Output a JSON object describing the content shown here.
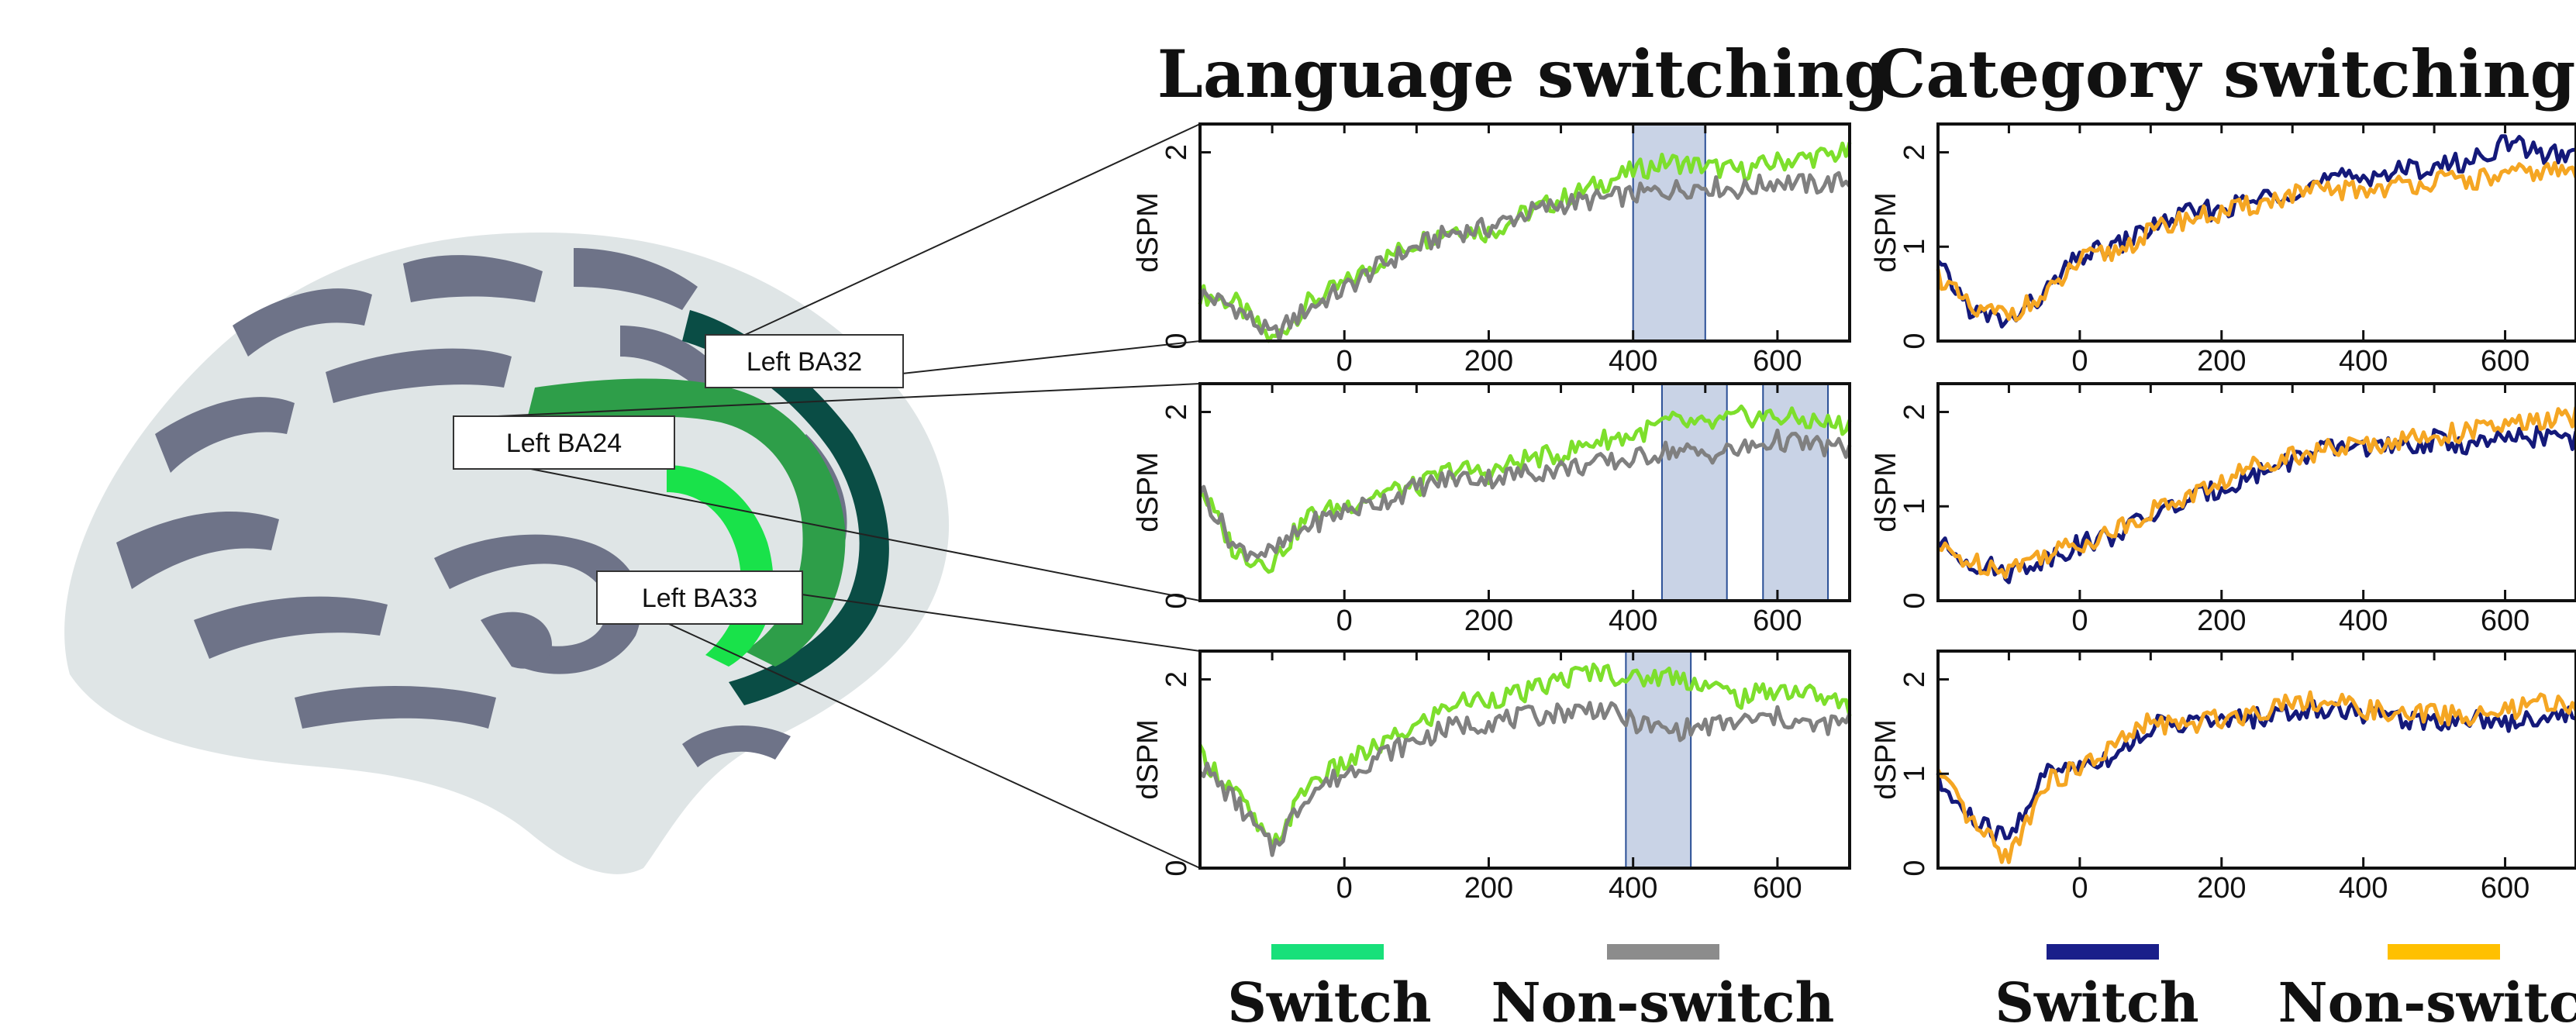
{
  "colors": {
    "lang_switch": "#7ddf2c",
    "lang_nonswitch": "#808080",
    "cat_switch": "#14197a",
    "cat_nonswitch": "#f5a623",
    "legend_lang_switch": "#18e07a",
    "legend_lang_nonswitch": "#8c8c8c",
    "legend_cat_switch": "#1a1f8a",
    "legend_cat_nonswitch": "#ffc000",
    "highlight_fill": "#c9d3e6",
    "highlight_stroke": "#2a4f96",
    "brain_surface": "#dfe5e6",
    "brain_sulci": "#6e7388",
    "ba32_color": "#0a4d45",
    "ba24_color": "#2e9e49",
    "ba33_color": "#19e24a"
  },
  "brain": {
    "labels": [
      "Left BA32",
      "Left BA24",
      "Left BA33"
    ]
  },
  "chart_data": [
    {
      "type": "line",
      "title": "Language switching",
      "panels": [
        {
          "region": "Left BA32",
          "ylabel": "dSPM",
          "xlim": [
            -200,
            700
          ],
          "ylim": [
            0,
            2.3
          ],
          "yticks": [
            0,
            2
          ],
          "xticks": [
            0,
            200,
            400,
            600
          ],
          "highlights": [
            [
              400,
              500
            ]
          ],
          "x": [
            -200,
            -150,
            -100,
            -50,
            0,
            50,
            100,
            150,
            200,
            250,
            300,
            350,
            400,
            450,
            500,
            550,
            600,
            650,
            700
          ],
          "series": [
            {
              "name": "Switch",
              "values": [
                0.5,
                0.4,
                0.0,
                0.4,
                0.6,
                0.85,
                1.05,
                1.2,
                1.15,
                1.35,
                1.5,
                1.65,
                1.8,
                1.9,
                1.85,
                1.8,
                1.9,
                1.95,
                2.0
              ]
            },
            {
              "name": "Non-switch",
              "values": [
                0.5,
                0.35,
                0.05,
                0.35,
                0.55,
                0.8,
                1.0,
                1.15,
                1.2,
                1.35,
                1.45,
                1.5,
                1.55,
                1.6,
                1.65,
                1.6,
                1.7,
                1.65,
                1.7
              ]
            }
          ]
        },
        {
          "region": "Left BA24",
          "ylabel": "dSPM",
          "xlim": [
            -200,
            700
          ],
          "ylim": [
            0,
            2.3
          ],
          "yticks": [
            0,
            2
          ],
          "xticks": [
            0,
            200,
            400,
            600
          ],
          "highlights": [
            [
              440,
              530
            ],
            [
              580,
              670
            ]
          ],
          "x": [
            -200,
            -150,
            -100,
            -50,
            0,
            50,
            100,
            150,
            200,
            250,
            300,
            350,
            400,
            450,
            500,
            550,
            600,
            650,
            700
          ],
          "series": [
            {
              "name": "Switch",
              "values": [
                1.2,
                0.5,
                0.4,
                0.9,
                1.0,
                1.15,
                1.2,
                1.4,
                1.35,
                1.5,
                1.55,
                1.7,
                1.75,
                1.9,
                1.85,
                1.95,
                1.95,
                1.9,
                1.85
              ]
            },
            {
              "name": "Non-switch",
              "values": [
                1.2,
                0.55,
                0.5,
                0.8,
                0.95,
                1.05,
                1.2,
                1.3,
                1.3,
                1.35,
                1.4,
                1.45,
                1.5,
                1.6,
                1.55,
                1.6,
                1.7,
                1.65,
                1.6
              ]
            }
          ]
        },
        {
          "region": "Left BA33",
          "ylabel": "dSPM",
          "xlim": [
            -200,
            700
          ],
          "ylim": [
            0,
            2.3
          ],
          "yticks": [
            0,
            2
          ],
          "xticks": [
            0,
            200,
            400,
            600
          ],
          "highlights": [
            [
              390,
              480
            ]
          ],
          "x": [
            -200,
            -150,
            -100,
            -50,
            0,
            50,
            100,
            150,
            200,
            250,
            300,
            350,
            400,
            450,
            500,
            550,
            600,
            650,
            700
          ],
          "series": [
            {
              "name": "Switch",
              "values": [
                1.2,
                0.8,
                0.2,
                0.9,
                1.1,
                1.3,
                1.5,
                1.75,
                1.8,
                1.85,
                2.0,
                2.1,
                2.0,
                2.05,
                1.95,
                1.8,
                1.9,
                1.85,
                1.7
              ]
            },
            {
              "name": "Non-switch",
              "values": [
                1.1,
                0.7,
                0.2,
                0.8,
                1.0,
                1.2,
                1.35,
                1.5,
                1.55,
                1.6,
                1.65,
                1.7,
                1.55,
                1.45,
                1.5,
                1.55,
                1.6,
                1.5,
                1.55
              ]
            }
          ]
        }
      ]
    },
    {
      "type": "line",
      "title": "Category switching",
      "panels": [
        {
          "ylabel": "dSPM",
          "xlim": [
            -200,
            700
          ],
          "ylim": [
            0,
            2.3
          ],
          "yticks": [
            0,
            1,
            2
          ],
          "xticks": [
            0,
            200,
            400,
            600
          ],
          "highlights": [],
          "x": [
            -200,
            -150,
            -100,
            -50,
            0,
            50,
            100,
            150,
            200,
            250,
            300,
            350,
            400,
            450,
            500,
            550,
            600,
            650,
            700
          ],
          "series": [
            {
              "name": "Switch",
              "values": [
                0.8,
                0.3,
                0.2,
                0.5,
                0.9,
                1.0,
                1.2,
                1.35,
                1.4,
                1.5,
                1.6,
                1.7,
                1.75,
                1.8,
                1.85,
                1.9,
                2.1,
                2.0,
                1.95
              ]
            },
            {
              "name": "Non-switch",
              "values": [
                0.7,
                0.3,
                0.3,
                0.45,
                0.85,
                0.95,
                1.15,
                1.3,
                1.35,
                1.45,
                1.55,
                1.6,
                1.6,
                1.65,
                1.7,
                1.7,
                1.75,
                1.8,
                1.8
              ]
            }
          ]
        },
        {
          "ylabel": "dSPM",
          "xlim": [
            -200,
            700
          ],
          "ylim": [
            0,
            2.3
          ],
          "yticks": [
            0,
            1,
            2
          ],
          "xticks": [
            0,
            200,
            400,
            600
          ],
          "highlights": [],
          "x": [
            -200,
            -150,
            -100,
            -50,
            0,
            50,
            100,
            150,
            200,
            250,
            300,
            350,
            400,
            450,
            500,
            550,
            600,
            650,
            700
          ],
          "series": [
            {
              "name": "Switch",
              "values": [
                0.6,
                0.4,
                0.3,
                0.45,
                0.6,
                0.7,
                0.9,
                1.05,
                1.2,
                1.35,
                1.5,
                1.6,
                1.65,
                1.6,
                1.7,
                1.65,
                1.7,
                1.75,
                1.7
              ]
            },
            {
              "name": "Non-switch",
              "values": [
                0.55,
                0.4,
                0.35,
                0.5,
                0.6,
                0.75,
                0.95,
                1.1,
                1.25,
                1.45,
                1.55,
                1.6,
                1.65,
                1.7,
                1.75,
                1.8,
                1.85,
                1.9,
                1.95
              ]
            }
          ]
        },
        {
          "ylabel": "dSPM",
          "xlim": [
            -200,
            700
          ],
          "ylim": [
            0,
            2.3
          ],
          "yticks": [
            0,
            1,
            2
          ],
          "xticks": [
            0,
            200,
            400,
            600
          ],
          "highlights": [],
          "x": [
            -200,
            -150,
            -100,
            -50,
            0,
            50,
            100,
            150,
            200,
            250,
            300,
            350,
            400,
            450,
            500,
            550,
            600,
            650,
            700
          ],
          "series": [
            {
              "name": "Switch",
              "values": [
                0.9,
                0.5,
                0.3,
                1.0,
                1.1,
                1.2,
                1.5,
                1.55,
                1.55,
                1.6,
                1.65,
                1.7,
                1.65,
                1.6,
                1.55,
                1.6,
                1.55,
                1.6,
                1.65
              ]
            },
            {
              "name": "Non-switch",
              "values": [
                1.0,
                0.45,
                0.1,
                0.9,
                1.05,
                1.3,
                1.55,
                1.5,
                1.6,
                1.65,
                1.8,
                1.75,
                1.7,
                1.6,
                1.65,
                1.6,
                1.65,
                1.75,
                1.7
              ]
            }
          ]
        }
      ]
    }
  ],
  "legend": {
    "lang_switch": "Switch",
    "lang_nonswitch": "Non-switch",
    "cat_switch": "Switch",
    "cat_nonswitch": "Non-switch"
  }
}
